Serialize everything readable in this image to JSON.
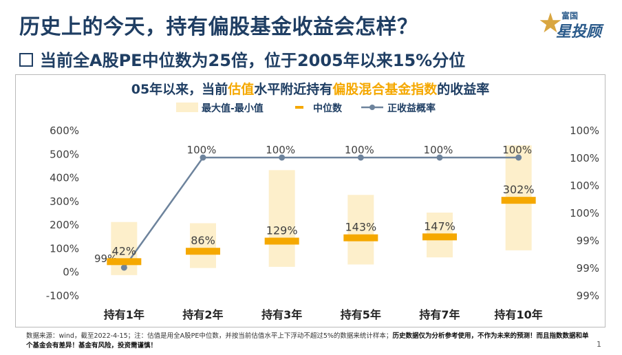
{
  "header": {
    "title": "历史上的今天，持有偏股基金收益会怎样？",
    "subtitle": "当前全A股PE中位数为25倍，位于2005年以来15%分位"
  },
  "logo": {
    "line1": "富国",
    "line2": "星投顾",
    "star_icon": "star-icon"
  },
  "chart_data": {
    "type": "bar",
    "title_parts": [
      {
        "text": "05年以来，当前",
        "highlight": false
      },
      {
        "text": "估值",
        "highlight": true
      },
      {
        "text": "水平附近持有",
        "highlight": false
      },
      {
        "text": "偏股混合基金指数",
        "highlight": true
      },
      {
        "text": "的收益率",
        "highlight": false
      }
    ],
    "legend": [
      {
        "key": "range",
        "label": "最大值-最小值"
      },
      {
        "key": "median",
        "label": "中位数"
      },
      {
        "key": "prob",
        "label": "正收益概率"
      }
    ],
    "categories": [
      "持有1年",
      "持有2年",
      "持有3年",
      "持有5年",
      "持有7年",
      "持有10年"
    ],
    "range_min": [
      -15,
      15,
      20,
      30,
      60,
      90
    ],
    "range_max": [
      210,
      205,
      430,
      325,
      250,
      535
    ],
    "median": [
      42,
      86,
      129,
      143,
      147,
      302
    ],
    "median_labels": [
      "42%",
      "86%",
      "129%",
      "143%",
      "147%",
      "302%"
    ],
    "positive_prob": [
      99.2,
      100,
      100,
      100,
      100,
      100
    ],
    "positive_prob_labels": [
      "99%",
      "100%",
      "100%",
      "100%",
      "100%",
      "100%"
    ],
    "y_left": {
      "min": -100,
      "max": 600,
      "step": 100,
      "tick_labels": [
        "600%",
        "500%",
        "400%",
        "300%",
        "200%",
        "100%",
        "0%",
        "-100%"
      ]
    },
    "y_right": {
      "min": 99.0,
      "max": 100.2,
      "tick_labels": [
        "100%",
        "100%",
        "100%",
        "100%",
        "99%",
        "99%",
        "99%"
      ]
    },
    "colors": {
      "range": "#fdefcb",
      "median": "#f5a800",
      "line": "#6d839c",
      "title_text": "#1f3e63",
      "highlight": "#f5a800",
      "axis_text": "#404040"
    }
  },
  "footer": {
    "source_text": "数据来源：wind，截至2022-4-15；注：估值是用全A股PE中位数，并按当前估值水平上下浮动不超过5%的数据来统计样本；",
    "bold_text": "历史数据仅为分析参考使用，不作为未来的预测！而且指数数据和单个基金会有差异！基金有风险，投资需谨慎！",
    "page_number": "1"
  }
}
